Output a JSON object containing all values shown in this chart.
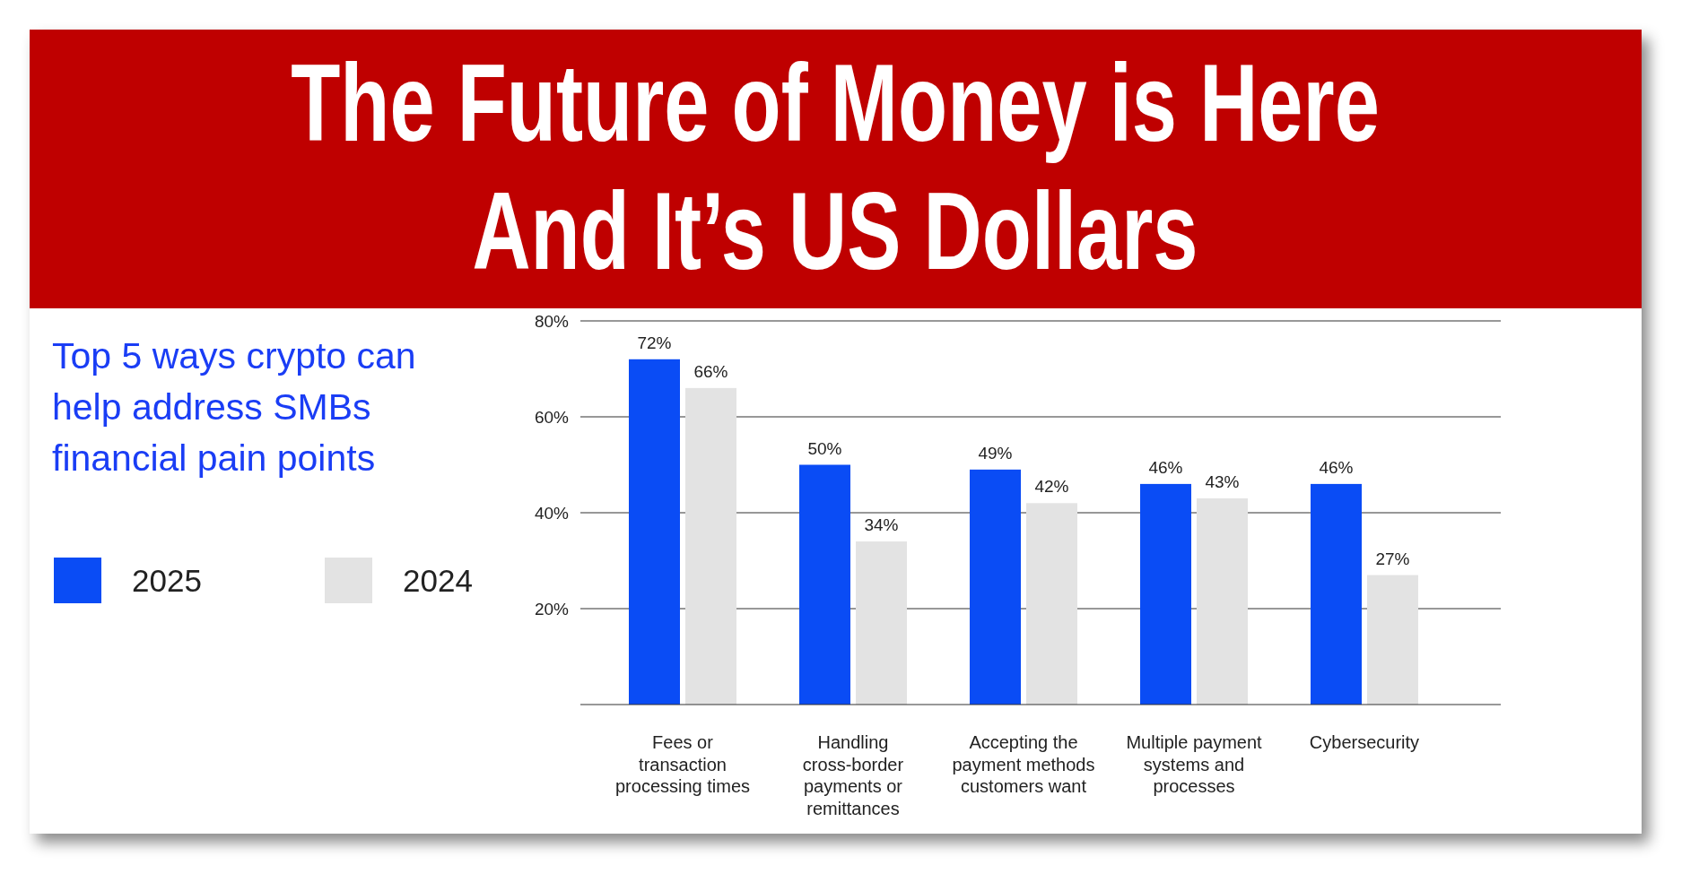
{
  "chart_data": {
    "type": "bar",
    "title": "The Future of Money is Here\nAnd It’s US Dollars",
    "subtitle": "Top 5 ways crypto can help address SMBs financial pain points",
    "categories": [
      "Fees or transaction processing times",
      "Handling cross-border payments or remittances",
      "Accepting the payment methods customers want",
      "Multiple payment systems and processes",
      "Cybersecurity"
    ],
    "series": [
      {
        "name": "2025",
        "color": "#0a4cf5",
        "values": [
          72,
          50,
          49,
          46,
          46
        ],
        "value_labels": [
          "72%",
          "50%",
          "49%",
          "46%",
          "46%"
        ]
      },
      {
        "name": "2024",
        "color": "#e3e3e3",
        "values": [
          66,
          34,
          42,
          43,
          27
        ],
        "value_labels": [
          "66%",
          "34%",
          "42%",
          "43%",
          "27%"
        ]
      }
    ],
    "ylim": [
      0,
      80
    ],
    "yticks": [
      {
        "value": 20,
        "label": "20%"
      },
      {
        "value": 40,
        "label": "40%"
      },
      {
        "value": 60,
        "label": "60%"
      },
      {
        "value": 80,
        "label": "80%"
      }
    ],
    "grid": "y",
    "legend": "left"
  }
}
